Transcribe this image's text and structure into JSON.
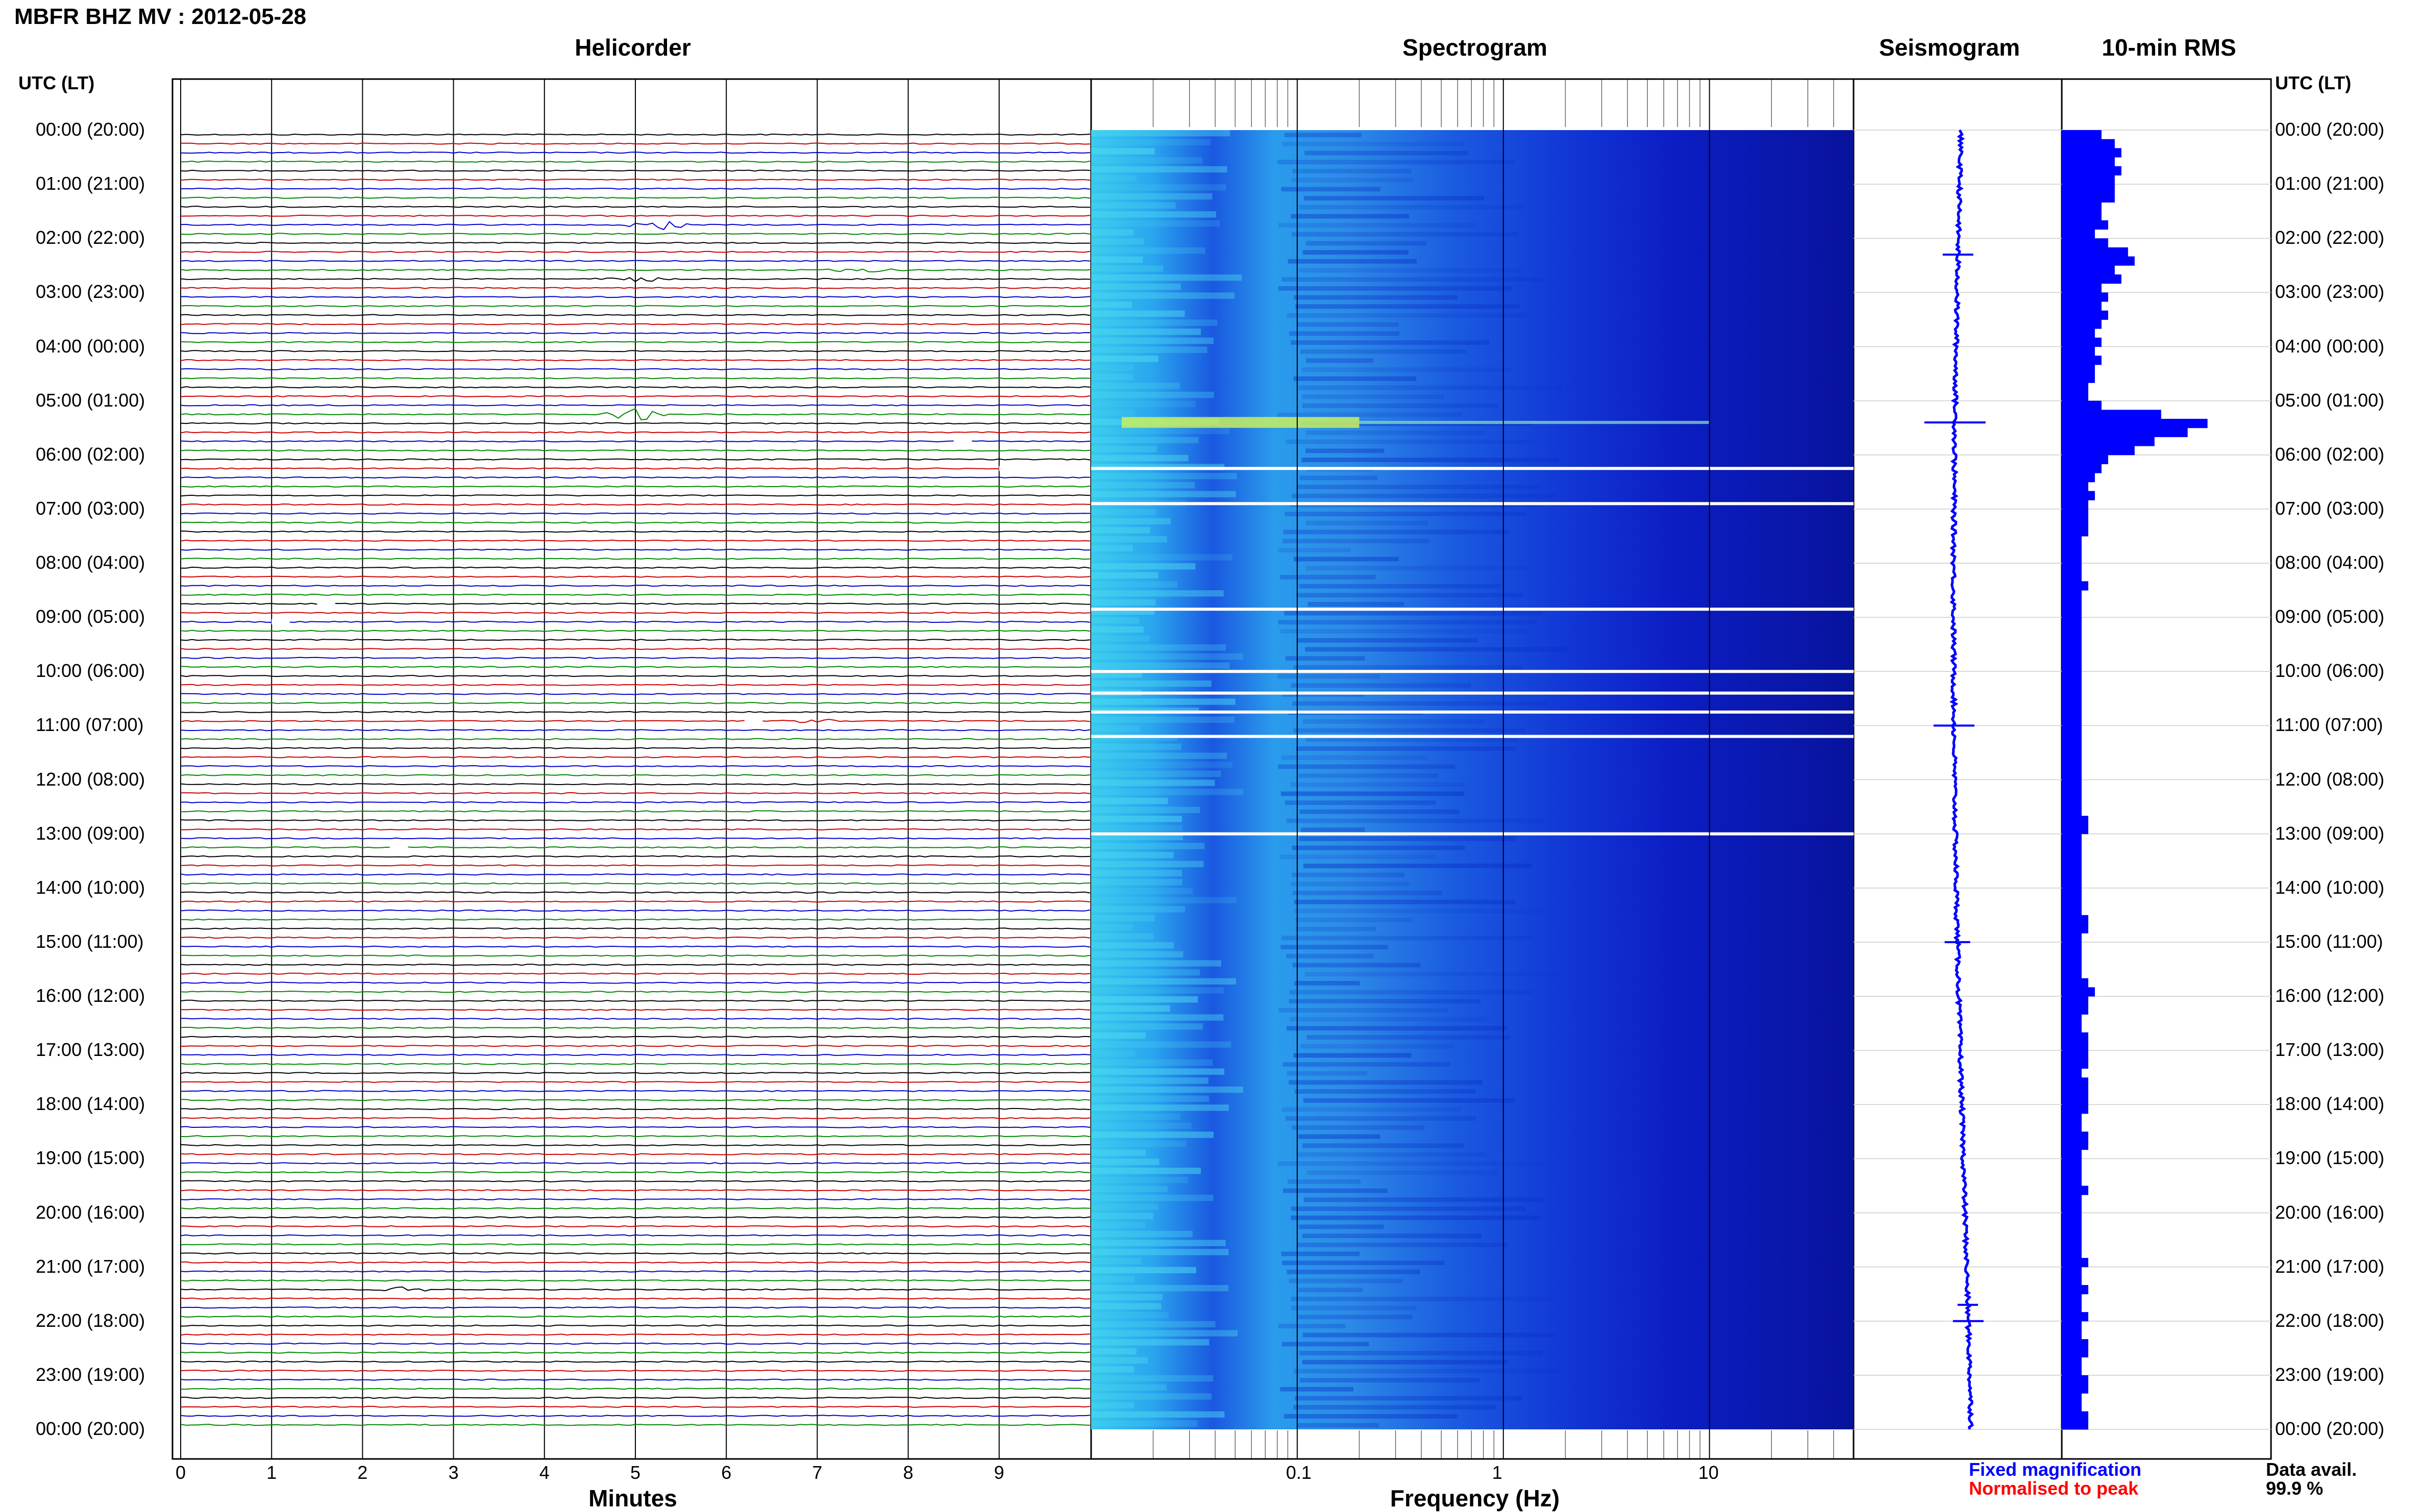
{
  "header": {
    "title": "MBFR BHZ MV : 2012-05-28"
  },
  "panels": {
    "helicorder": "Helicorder",
    "spectrogram": "Spectrogram",
    "seismogram": "Seismogram",
    "rms": "10-min RMS"
  },
  "axes": {
    "left_header": "UTC (LT)",
    "right_header": "UTC (LT)",
    "helicorder_xlabel": "Minutes",
    "spectrogram_xlabel": "Frequency (Hz)"
  },
  "legend": {
    "fixed": "Fixed magnification",
    "normalised": "Normalised to peak",
    "data_avail_label": "Data avail.",
    "data_avail_value": "99.9 %"
  },
  "colors": {
    "trace_cycle": [
      "#000000",
      "#cc0000",
      "#0000cc",
      "#008800"
    ],
    "seismogram": "#0000ff",
    "rms": "#0000ff",
    "legend_fixed": "#0000ff",
    "legend_normalised": "#ff0000"
  },
  "chart_data": [
    {
      "type": "line",
      "title": "Helicorder",
      "xlabel": "Minutes",
      "x_ticks": [
        "0",
        "1",
        "2",
        "3",
        "4",
        "5",
        "6",
        "7",
        "8",
        "9"
      ],
      "xlim": [
        0,
        10
      ],
      "row_duration_min": 10,
      "y_labels": [
        "00:00 (20:00)",
        "01:00 (21:00)",
        "02:00 (22:00)",
        "03:00 (23:00)",
        "04:00 (00:00)",
        "05:00 (01:00)",
        "06:00 (02:00)",
        "07:00 (03:00)",
        "08:00 (04:00)",
        "09:00 (05:00)",
        "10:00 (06:00)",
        "11:00 (07:00)",
        "12:00 (08:00)",
        "13:00 (09:00)",
        "14:00 (10:00)",
        "15:00 (11:00)",
        "16:00 (12:00)",
        "17:00 (13:00)",
        "18:00 (14:00)",
        "19:00 (15:00)",
        "20:00 (16:00)",
        "21:00 (17:00)",
        "22:00 (18:00)",
        "23:00 (19:00)",
        "00:00 (20:00)"
      ],
      "events": [
        {
          "row": 10,
          "minute": 5.3,
          "amplitude": 3
        },
        {
          "row": 15,
          "minute": 7.5,
          "amplitude": 2
        },
        {
          "row": 16,
          "minute": 5.0,
          "amplitude": 2
        },
        {
          "row": 31,
          "minute": 5.0,
          "amplitude": 4
        },
        {
          "row": 65,
          "minute": 7.0,
          "amplitude": 1.5
        },
        {
          "row": 128,
          "minute": 2.5,
          "amplitude": 1.5
        }
      ],
      "gaps": [
        {
          "row": 34,
          "start_min": 8.5,
          "end_min": 8.7
        },
        {
          "row": 37,
          "start_min": 9.0,
          "end_min": 10.0
        },
        {
          "row": 52,
          "start_min": 1.5,
          "end_min": 1.7
        },
        {
          "row": 54,
          "start_min": 1.0,
          "end_min": 1.2
        },
        {
          "row": 65,
          "start_min": 6.2,
          "end_min": 6.4
        },
        {
          "row": 79,
          "start_min": 2.3,
          "end_min": 2.5
        }
      ]
    },
    {
      "type": "heatmap",
      "title": "Spectrogram",
      "xlabel": "Frequency (Hz)",
      "x_scale": "log",
      "xlim": [
        0.01,
        50
      ],
      "x_ticks": [
        "0.1",
        "1",
        "10"
      ],
      "blank_rows_hours": [
        6.25,
        6.9,
        8.85,
        10.0,
        10.4,
        10.75,
        11.2,
        13.0
      ],
      "hot_row_hour": 5.4
    },
    {
      "type": "line",
      "title": "Seismogram",
      "note": "24-hour trace with long-period drift"
    },
    {
      "type": "bar",
      "title": "10-min RMS",
      "orientation": "horizontal",
      "values": [
        6,
        8,
        9,
        8,
        9,
        8,
        8,
        8,
        6,
        6,
        7,
        5,
        7,
        10,
        11,
        8,
        9,
        6,
        7,
        6,
        7,
        6,
        5,
        6,
        5,
        6,
        5,
        5,
        4,
        4,
        6,
        15,
        22,
        19,
        14,
        11,
        7,
        6,
        5,
        4,
        5,
        4,
        4,
        4,
        4,
        3,
        3,
        3,
        3,
        3,
        4,
        3,
        3,
        3,
        3,
        3,
        3,
        3,
        3,
        3,
        3,
        3,
        3,
        3,
        3,
        3,
        3,
        3,
        3,
        3,
        3,
        3,
        3,
        3,
        3,
        3,
        4,
        4,
        3,
        3,
        3,
        3,
        3,
        3,
        3,
        3,
        3,
        4,
        4,
        3,
        3,
        3,
        3,
        3,
        4,
        5,
        4,
        4,
        3,
        3,
        4,
        4,
        4,
        4,
        3,
        4,
        4,
        4,
        4,
        3,
        3,
        4,
        4,
        3,
        3,
        3,
        3,
        4,
        3,
        3,
        3,
        3,
        3,
        3,
        3,
        4,
        3,
        3,
        4,
        3,
        3,
        4,
        3,
        3,
        4,
        4,
        3,
        3,
        4,
        4,
        3,
        3,
        4,
        4
      ]
    }
  ]
}
